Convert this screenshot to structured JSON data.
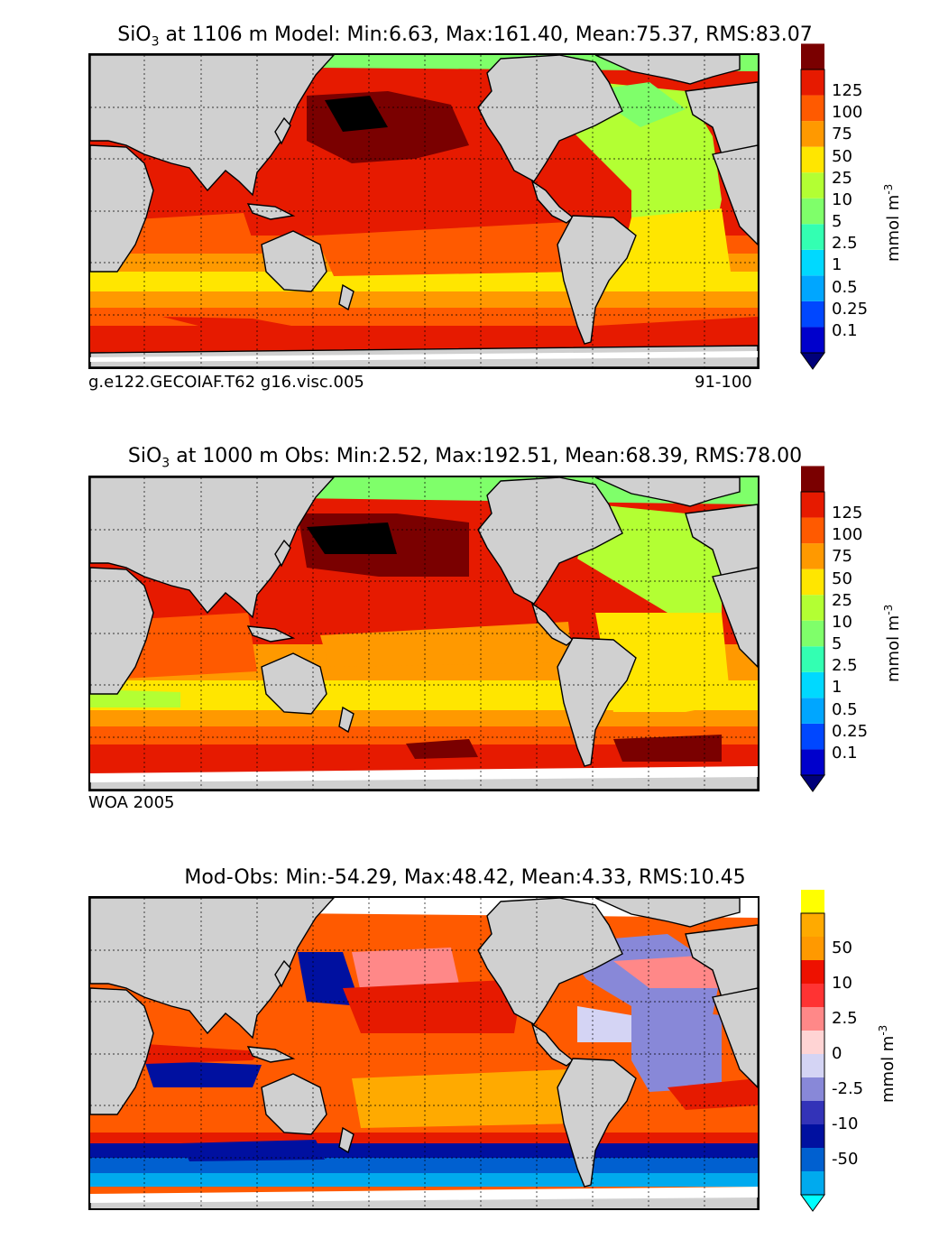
{
  "colors": {
    "land": "#d0d0d0",
    "ice": "#ffffff",
    "frame": "#000000",
    "model_obs_scale": [
      "#00007a",
      "#0000cc",
      "#0047ff",
      "#00a6ff",
      "#00d9ff",
      "#33ffb2",
      "#7fff6a",
      "#b3ff33",
      "#ffe600",
      "#ff9900",
      "#ff5a00",
      "#e61a00",
      "#7a0000"
    ],
    "diff_scale": [
      "#00ffff",
      "#00aaee",
      "#0060d0",
      "#0010a0",
      "#3333b8",
      "#8888d8",
      "#d4d4f4",
      "#ffd4d4",
      "#ff8888",
      "#ff3333",
      "#ee1100",
      "#ff9900",
      "#ffaa00",
      "#ffff00"
    ]
  },
  "chart_data": [
    {
      "id": "model",
      "type": "heatmap",
      "title_prefix": "SiO",
      "title_sub": "3",
      "title_rest": " at 1106 m Model: Min:6.63, Max:161.40, Mean:75.37, RMS:83.07",
      "footer_left": "g.e122.GECOIAF.T62 g16.visc.005",
      "footer_right": "91-100",
      "colorbar_labels": [
        "125",
        "100",
        "75",
        "50",
        "25",
        "10",
        "5",
        "2.5",
        "1",
        "0.5",
        "0.25",
        "0.1"
      ],
      "colorbar_unit": "mmol m",
      "colorbar_unit_sup": "-3",
      "stats": {
        "min": 6.63,
        "max": 161.4,
        "mean": 75.37,
        "rms": 83.07
      },
      "depth_m": 1106
    },
    {
      "id": "obs",
      "type": "heatmap",
      "title_prefix": "SiO",
      "title_sub": "3",
      "title_rest": " at 1000 m Obs: Min:2.52, Max:192.51, Mean:68.39, RMS:78.00",
      "footer_left": "WOA 2005",
      "colorbar_labels": [
        "125",
        "100",
        "75",
        "50",
        "25",
        "10",
        "5",
        "2.5",
        "1",
        "0.5",
        "0.25",
        "0.1"
      ],
      "colorbar_unit": "mmol m",
      "colorbar_unit_sup": "-3",
      "stats": {
        "min": 2.52,
        "max": 192.51,
        "mean": 68.39,
        "rms": 78.0
      },
      "depth_m": 1000
    },
    {
      "id": "diff",
      "type": "heatmap",
      "title_rest": "Mod-Obs: Min:-54.29, Max:48.42, Mean:4.33, RMS:10.45",
      "colorbar_labels": [
        "50",
        "10",
        "2.5",
        "0",
        "-2.5",
        "-10",
        "-50"
      ],
      "colorbar_unit": "mmol m",
      "colorbar_unit_sup": "-3",
      "stats": {
        "min": -54.29,
        "max": 48.42,
        "mean": 4.33,
        "rms": 10.45
      }
    }
  ]
}
